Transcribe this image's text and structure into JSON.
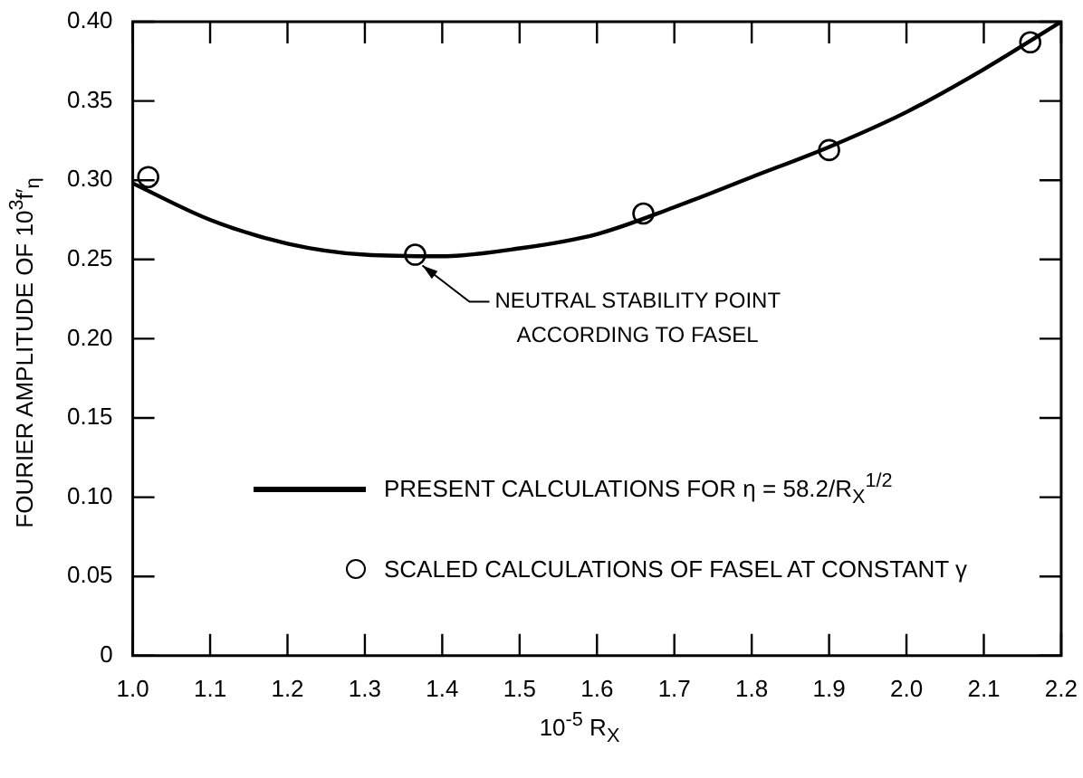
{
  "chart_data": {
    "type": "line",
    "xlabel": "10$^{-5}$ R$_{X}$",
    "ylabel": "FOURIER AMPLITUDE OF 10$^{3}$f′$_{η}$",
    "xlim": [
      1.0,
      2.2
    ],
    "xticks": [
      {
        "value": 1.0,
        "label": "1.0"
      },
      1.1,
      1.2,
      1.3,
      1.4,
      1.5,
      1.6,
      1.7,
      1.8,
      1.9,
      {
        "value": 2.0,
        "label": "2.0"
      },
      2.1,
      2.2
    ],
    "ylim": [
      0,
      0.4
    ],
    "yticks": [
      0,
      0.05,
      {
        "value": 0.1,
        "label": "0.10"
      },
      0.15,
      {
        "value": 0.2,
        "label": "0.20"
      },
      0.25,
      {
        "value": 0.3,
        "label": "0.30"
      },
      0.35,
      {
        "value": 0.4,
        "label": "0.40"
      }
    ],
    "series": [
      {
        "name": "PRESENT CALCULATIONS FOR η = 58.2/R$_{X}$$^{1/2}$",
        "type": "line",
        "color": "#000000",
        "marker": "none",
        "x": [
          1.0,
          1.1,
          1.2,
          1.3,
          1.4,
          1.5,
          1.6,
          1.7,
          1.8,
          1.9,
          2.0,
          2.1,
          2.2
        ],
        "values": [
          0.298,
          0.275,
          0.26,
          0.253,
          0.252,
          0.257,
          0.266,
          0.283,
          0.302,
          0.321,
          0.343,
          0.37,
          0.4
        ]
      },
      {
        "name": "SCALED CALCULATIONS OF FASEL AT CONSTANT γ",
        "type": "scatter",
        "color": "#000000",
        "marker": "circle",
        "x": [
          1.02,
          1.365,
          1.66,
          1.9,
          2.16
        ],
        "values": [
          0.302,
          0.253,
          0.279,
          0.319,
          0.387
        ]
      }
    ],
    "annotations": [
      {
        "text": "NEUTRAL STABILITY POINT ACCORDING TO FASEL",
        "x": 1.365,
        "y": 0.253
      }
    ],
    "legend": "bottom",
    "grid": false
  }
}
